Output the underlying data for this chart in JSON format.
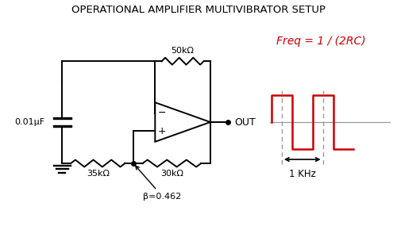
{
  "title": "OPERATIONAL AMPLIFIER MULTIVIBRATOR SETUP",
  "title_fontsize": 9.5,
  "title_color": "#000000",
  "background_color": "#ffffff",
  "formula_text": "Freq = 1 / (2RC)",
  "formula_color": "#cc0000",
  "formula_fontsize": 10,
  "out_label": "OUT",
  "freq_label": "1 KHz",
  "cap_label": "0.01μF",
  "r1_label": "50kΩ",
  "r2_label": "35kΩ",
  "r3_label": "30kΩ",
  "beta_label": "β=0.462",
  "minus_label": "−",
  "plus_label": "+",
  "line_color": "#000000",
  "red_color": "#cc0000",
  "gray_color": "#999999"
}
